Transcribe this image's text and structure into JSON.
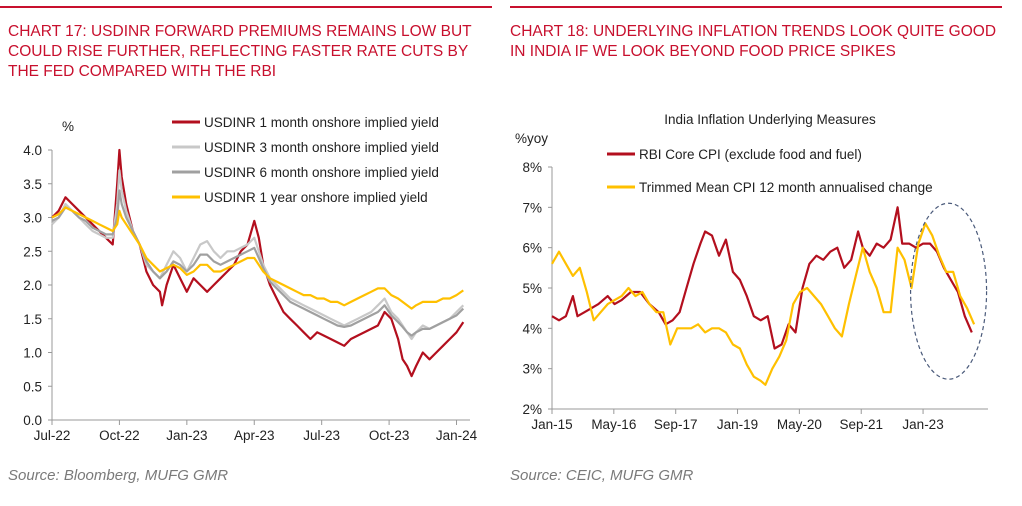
{
  "left": {
    "title": "CHART 17: USDINR FORWARD PREMIUMS REMAINS LOW BUT COULD RISE FURTHER, REFLECTING FASTER RATE CUTS BY THE FED COMPARED WITH THE RBI",
    "source": "Source: Bloomberg, MUFG GMR"
  },
  "right": {
    "title": "CHART 18: UNDERLYING INFLATION TRENDS LOOK QUITE GOOD IN INDIA IF WE LOOK BEYOND FOOD PRICE SPIKES",
    "source": "Source: CEIC, MUFG GMR"
  },
  "colors": {
    "accent": "#c8102e",
    "darkred": "#b30f1e",
    "lightgray": "#c8c8c8",
    "gray": "#a0a0a0",
    "gold": "#ffc000"
  },
  "chart_data": [
    {
      "type": "line",
      "title": "",
      "ylabel": "%",
      "xlabel": "",
      "ylim": [
        0,
        4.0
      ],
      "yticks": [
        "4.0",
        "3.5",
        "3.0",
        "2.5",
        "2.0",
        "1.5",
        "1.0",
        "0.5",
        "0.0"
      ],
      "xticks": [
        "Jul-22",
        "Oct-22",
        "Jan-23",
        "Apr-23",
        "Jul-23",
        "Oct-23",
        "Jan-24"
      ],
      "xtick_positions": [
        0,
        3,
        6,
        9,
        12,
        15,
        18
      ],
      "xlim": [
        0,
        18.6
      ],
      "legend_position": "top-right",
      "series": [
        {
          "name": "USDINR 1 month onshore implied yield",
          "color": "#b30f1e",
          "x": [
            0,
            0.3,
            0.6,
            0.9,
            1.2,
            1.5,
            1.8,
            2.1,
            2.4,
            2.7,
            2.9,
            3.0,
            3.1,
            3.3,
            3.6,
            3.9,
            4.2,
            4.5,
            4.8,
            4.9,
            5.1,
            5.4,
            5.7,
            6.0,
            6.3,
            6.6,
            6.9,
            7.2,
            7.5,
            7.8,
            8.1,
            8.4,
            8.7,
            9.0,
            9.2,
            9.4,
            9.7,
            10.0,
            10.3,
            10.6,
            10.9,
            11.2,
            11.5,
            11.8,
            12.1,
            12.4,
            12.7,
            13.0,
            13.3,
            13.6,
            13.9,
            14.2,
            14.5,
            14.8,
            15.1,
            15.4,
            15.6,
            15.8,
            16.0,
            16.2,
            16.5,
            16.8,
            17.1,
            17.4,
            17.7,
            18.0,
            18.3
          ],
          "values": [
            3.0,
            3.1,
            3.3,
            3.2,
            3.1,
            3.0,
            2.9,
            2.8,
            2.7,
            2.6,
            3.5,
            4.0,
            3.6,
            3.2,
            2.8,
            2.6,
            2.2,
            2.0,
            1.9,
            1.7,
            2.0,
            2.3,
            2.1,
            1.9,
            2.1,
            2.0,
            1.9,
            2.0,
            2.1,
            2.2,
            2.3,
            2.5,
            2.6,
            2.95,
            2.7,
            2.3,
            2.0,
            1.8,
            1.6,
            1.5,
            1.4,
            1.3,
            1.2,
            1.3,
            1.25,
            1.2,
            1.15,
            1.1,
            1.2,
            1.25,
            1.3,
            1.35,
            1.4,
            1.6,
            1.5,
            1.2,
            0.9,
            0.8,
            0.65,
            0.8,
            1.0,
            0.9,
            1.0,
            1.1,
            1.2,
            1.3,
            1.45
          ]
        },
        {
          "name": "USDINR 3 month onshore implied yield",
          "color": "#c8c8c8",
          "x": [
            0,
            0.3,
            0.6,
            0.9,
            1.2,
            1.5,
            1.8,
            2.1,
            2.4,
            2.7,
            2.9,
            3.0,
            3.1,
            3.3,
            3.6,
            3.9,
            4.2,
            4.5,
            4.8,
            5.1,
            5.4,
            5.7,
            6.0,
            6.3,
            6.6,
            6.9,
            7.2,
            7.5,
            7.8,
            8.1,
            8.4,
            8.7,
            9.0,
            9.2,
            9.4,
            9.7,
            10.0,
            10.3,
            10.6,
            10.9,
            11.2,
            11.5,
            11.8,
            12.1,
            12.4,
            12.7,
            13.0,
            13.3,
            13.6,
            13.9,
            14.2,
            14.5,
            14.8,
            15.1,
            15.4,
            15.6,
            15.8,
            16.0,
            16.2,
            16.5,
            16.8,
            17.1,
            17.4,
            17.7,
            18.0,
            18.3
          ],
          "values": [
            2.9,
            3.0,
            3.2,
            3.1,
            3.0,
            2.9,
            2.8,
            2.75,
            2.7,
            2.7,
            3.2,
            3.7,
            3.4,
            3.1,
            2.8,
            2.6,
            2.3,
            2.2,
            2.1,
            2.3,
            2.5,
            2.4,
            2.2,
            2.4,
            2.6,
            2.65,
            2.5,
            2.4,
            2.5,
            2.5,
            2.55,
            2.6,
            2.7,
            2.5,
            2.3,
            2.1,
            2.0,
            1.9,
            1.8,
            1.75,
            1.7,
            1.65,
            1.6,
            1.55,
            1.5,
            1.45,
            1.4,
            1.45,
            1.5,
            1.55,
            1.6,
            1.7,
            1.8,
            1.6,
            1.5,
            1.4,
            1.3,
            1.2,
            1.3,
            1.4,
            1.35,
            1.4,
            1.45,
            1.5,
            1.6,
            1.7
          ]
        },
        {
          "name": "USDINR 6 month onshore implied yield",
          "color": "#a0a0a0",
          "x": [
            0,
            0.3,
            0.6,
            0.9,
            1.2,
            1.5,
            1.8,
            2.1,
            2.4,
            2.7,
            2.9,
            3.0,
            3.1,
            3.3,
            3.6,
            3.9,
            4.2,
            4.5,
            4.8,
            5.1,
            5.4,
            5.7,
            6.0,
            6.3,
            6.6,
            6.9,
            7.2,
            7.5,
            7.8,
            8.1,
            8.4,
            8.7,
            9.0,
            9.2,
            9.4,
            9.7,
            10.0,
            10.3,
            10.6,
            10.9,
            11.2,
            11.5,
            11.8,
            12.1,
            12.4,
            12.7,
            13.0,
            13.3,
            13.6,
            13.9,
            14.2,
            14.5,
            14.8,
            15.1,
            15.4,
            15.6,
            15.8,
            16.0,
            16.2,
            16.5,
            16.8,
            17.1,
            17.4,
            17.7,
            18.0,
            18.3
          ],
          "values": [
            2.95,
            3.0,
            3.15,
            3.1,
            3.0,
            2.95,
            2.85,
            2.8,
            2.75,
            2.75,
            3.0,
            3.4,
            3.2,
            3.0,
            2.8,
            2.6,
            2.35,
            2.2,
            2.1,
            2.2,
            2.35,
            2.3,
            2.2,
            2.3,
            2.45,
            2.45,
            2.35,
            2.3,
            2.35,
            2.4,
            2.45,
            2.5,
            2.55,
            2.4,
            2.25,
            2.05,
            1.95,
            1.85,
            1.75,
            1.7,
            1.65,
            1.6,
            1.55,
            1.5,
            1.45,
            1.4,
            1.38,
            1.4,
            1.45,
            1.5,
            1.55,
            1.6,
            1.7,
            1.55,
            1.45,
            1.38,
            1.3,
            1.25,
            1.3,
            1.35,
            1.35,
            1.4,
            1.45,
            1.5,
            1.55,
            1.65
          ]
        },
        {
          "name": "USDINR 1 year onshore implied yield",
          "color": "#ffc000",
          "x": [
            0,
            0.3,
            0.6,
            0.9,
            1.2,
            1.5,
            1.8,
            2.1,
            2.4,
            2.7,
            2.9,
            3.0,
            3.1,
            3.3,
            3.6,
            3.9,
            4.2,
            4.5,
            4.8,
            5.1,
            5.4,
            5.7,
            6.0,
            6.3,
            6.6,
            6.9,
            7.2,
            7.5,
            7.8,
            8.1,
            8.4,
            8.7,
            9.0,
            9.2,
            9.4,
            9.7,
            10.0,
            10.3,
            10.6,
            10.9,
            11.2,
            11.5,
            11.8,
            12.1,
            12.4,
            12.7,
            13.0,
            13.3,
            13.6,
            13.9,
            14.2,
            14.5,
            14.8,
            15.1,
            15.4,
            15.6,
            15.8,
            16.0,
            16.2,
            16.5,
            16.8,
            17.1,
            17.4,
            17.7,
            18.0,
            18.3
          ],
          "values": [
            3.0,
            3.05,
            3.15,
            3.1,
            3.05,
            3.0,
            2.95,
            2.9,
            2.85,
            2.8,
            2.9,
            3.1,
            3.0,
            2.9,
            2.75,
            2.6,
            2.4,
            2.3,
            2.2,
            2.25,
            2.3,
            2.25,
            2.15,
            2.2,
            2.3,
            2.3,
            2.2,
            2.2,
            2.25,
            2.3,
            2.35,
            2.4,
            2.4,
            2.3,
            2.2,
            2.1,
            2.05,
            2.0,
            1.95,
            1.9,
            1.85,
            1.85,
            1.8,
            1.8,
            1.75,
            1.75,
            1.7,
            1.75,
            1.8,
            1.85,
            1.9,
            1.95,
            1.95,
            1.85,
            1.8,
            1.75,
            1.7,
            1.65,
            1.7,
            1.75,
            1.75,
            1.75,
            1.8,
            1.8,
            1.85,
            1.92
          ]
        }
      ]
    },
    {
      "type": "line",
      "title": "India Inflation Underlying Measures",
      "ylabel": "%yoy",
      "xlabel": "",
      "ylim": [
        2,
        8
      ],
      "yticks": [
        "8%",
        "7%",
        "6%",
        "5%",
        "4%",
        "3%",
        "2%"
      ],
      "xticks": [
        "Jan-15",
        "May-16",
        "Sep-17",
        "Jan-19",
        "May-20",
        "Sep-21",
        "Jan-23"
      ],
      "xtick_positions": [
        2015.0,
        2016.333,
        2017.667,
        2019.0,
        2020.333,
        2021.667,
        2023.0
      ],
      "xlim": [
        2015.0,
        2024.4
      ],
      "legend_position": "top-right",
      "annotation": "dashed ellipse around 2023-2024 decline",
      "series": [
        {
          "name": "RBI Core CPI (exclude food and fuel)",
          "color": "#b30f1e",
          "x": [
            2015.0,
            2015.15,
            2015.3,
            2015.45,
            2015.55,
            2015.7,
            2015.85,
            2016.0,
            2016.2,
            2016.35,
            2016.5,
            2016.7,
            2016.9,
            2017.1,
            2017.3,
            2017.45,
            2017.6,
            2017.75,
            2017.9,
            2018.05,
            2018.2,
            2018.3,
            2018.45,
            2018.6,
            2018.75,
            2018.9,
            2019.05,
            2019.2,
            2019.35,
            2019.5,
            2019.65,
            2019.8,
            2019.95,
            2020.1,
            2020.25,
            2020.4,
            2020.55,
            2020.7,
            2020.85,
            2021.0,
            2021.15,
            2021.3,
            2021.45,
            2021.6,
            2021.7,
            2021.85,
            2022.0,
            2022.15,
            2022.3,
            2022.45,
            2022.55,
            2022.7,
            2022.85,
            2023.0,
            2023.15,
            2023.3,
            2023.45,
            2023.6,
            2023.75,
            2023.9,
            2024.05
          ],
          "values": [
            4.3,
            4.2,
            4.3,
            4.8,
            4.3,
            4.4,
            4.5,
            4.6,
            4.8,
            4.6,
            4.7,
            4.9,
            4.9,
            4.6,
            4.4,
            4.1,
            4.2,
            4.4,
            5.0,
            5.6,
            6.1,
            6.4,
            6.3,
            5.8,
            6.2,
            5.4,
            5.2,
            4.8,
            4.3,
            4.2,
            4.3,
            3.5,
            3.6,
            4.1,
            3.9,
            5.0,
            5.6,
            5.8,
            5.7,
            5.9,
            6.0,
            5.5,
            5.7,
            6.4,
            6.0,
            5.8,
            6.1,
            6.0,
            6.2,
            7.0,
            6.1,
            6.1,
            6.0,
            6.1,
            6.1,
            5.9,
            5.5,
            5.2,
            4.9,
            4.3,
            3.9
          ]
        },
        {
          "name": "Trimmed Mean CPI 12 month annualised change",
          "color": "#ffc000",
          "x": [
            2015.0,
            2015.15,
            2015.3,
            2015.45,
            2015.6,
            2015.75,
            2015.9,
            2016.05,
            2016.2,
            2016.35,
            2016.5,
            2016.65,
            2016.8,
            2016.95,
            2017.1,
            2017.25,
            2017.4,
            2017.55,
            2017.7,
            2017.85,
            2018.0,
            2018.15,
            2018.3,
            2018.45,
            2018.6,
            2018.75,
            2018.9,
            2019.05,
            2019.2,
            2019.35,
            2019.5,
            2019.6,
            2019.75,
            2019.9,
            2020.05,
            2020.2,
            2020.35,
            2020.5,
            2020.65,
            2020.8,
            2020.95,
            2021.1,
            2021.25,
            2021.4,
            2021.55,
            2021.7,
            2021.85,
            2022.0,
            2022.15,
            2022.3,
            2022.45,
            2022.6,
            2022.75,
            2022.9,
            2023.05,
            2023.2,
            2023.35,
            2023.5,
            2023.65,
            2023.8,
            2023.95,
            2024.1
          ],
          "values": [
            5.6,
            5.9,
            5.6,
            5.3,
            5.5,
            4.9,
            4.2,
            4.4,
            4.6,
            4.7,
            4.8,
            5.0,
            4.8,
            4.9,
            4.6,
            4.4,
            4.4,
            3.6,
            4.0,
            4.0,
            4.0,
            4.1,
            3.9,
            4.0,
            4.0,
            3.9,
            3.6,
            3.5,
            3.1,
            2.8,
            2.7,
            2.6,
            3.0,
            3.3,
            3.7,
            4.6,
            4.9,
            5.0,
            4.8,
            4.6,
            4.3,
            4.0,
            3.8,
            4.6,
            5.3,
            6.0,
            5.4,
            5.0,
            4.4,
            4.4,
            6.0,
            5.7,
            5.0,
            6.1,
            6.6,
            6.3,
            5.8,
            5.4,
            5.4,
            4.8,
            4.5,
            4.1
          ]
        }
      ]
    }
  ]
}
